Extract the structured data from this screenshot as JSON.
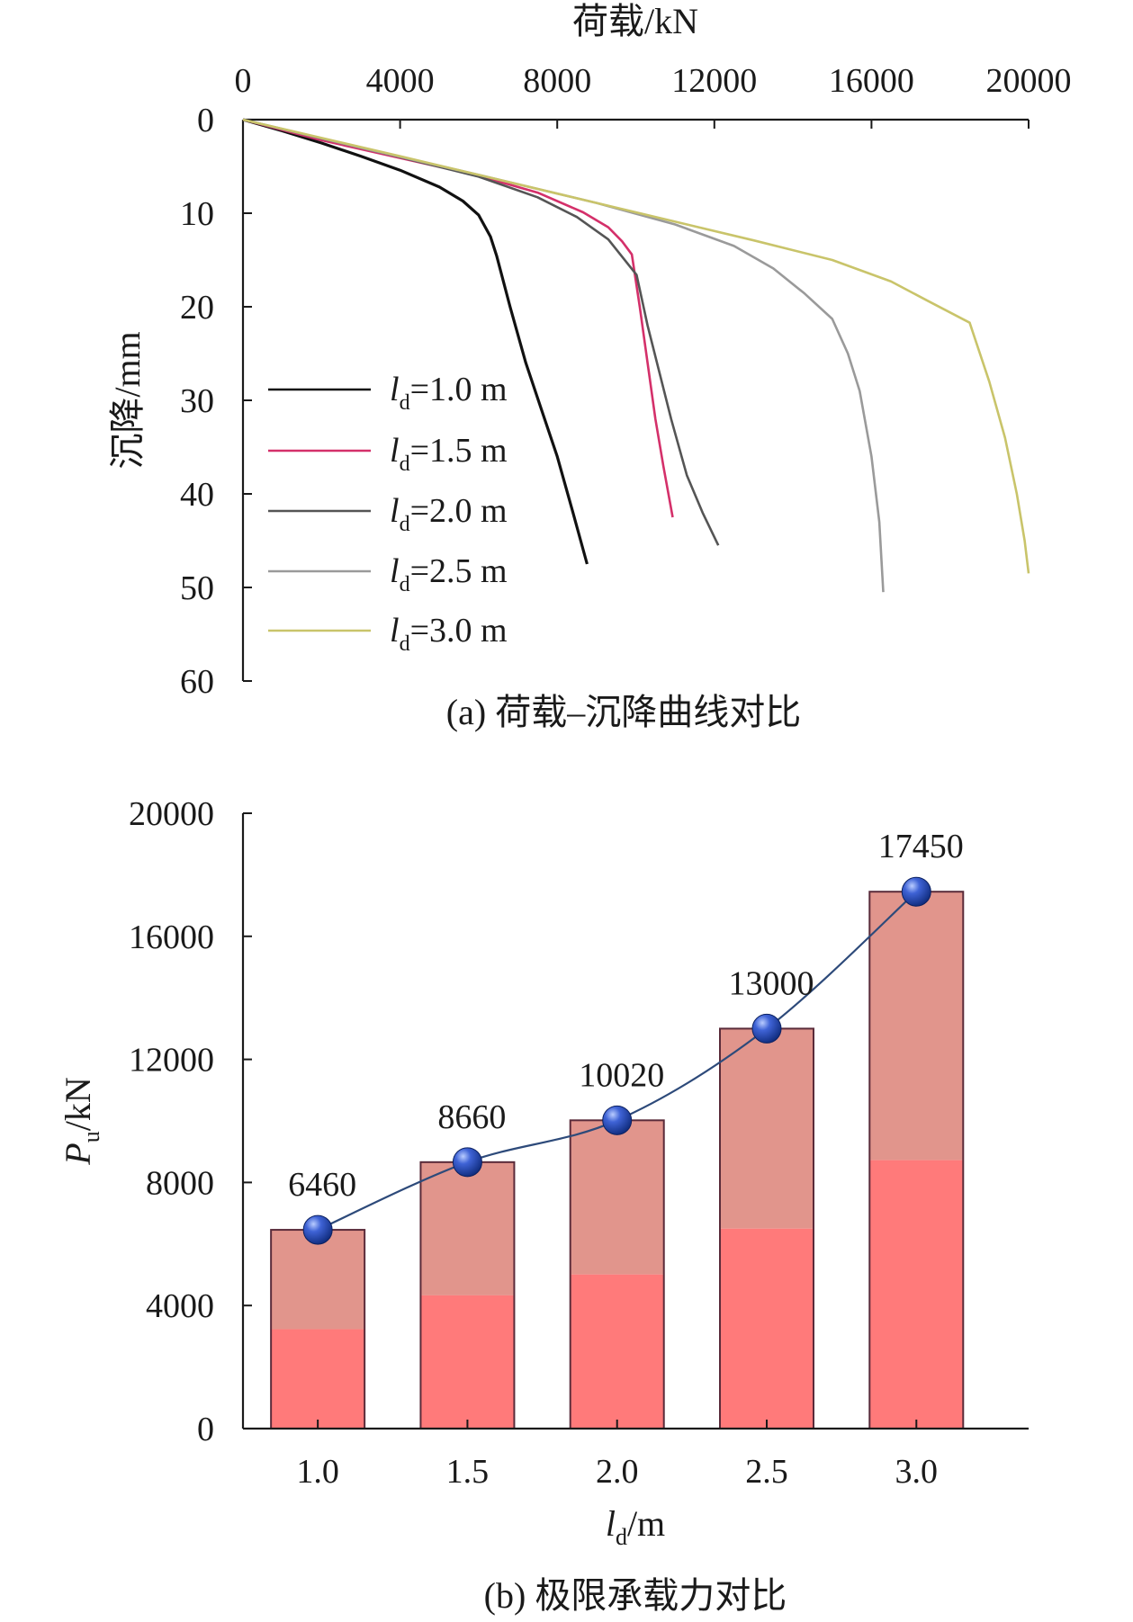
{
  "chart_data": [
    {
      "type": "line",
      "caption": "(a) 荷载–沉降曲线对比",
      "xlabel": "荷载/kN",
      "ylabel": "沉降/mm",
      "xlim": [
        0,
        20000
      ],
      "ylim": [
        0,
        60
      ],
      "x_axis_position": "top",
      "y_inverted": true,
      "xticks": [
        0,
        4000,
        8000,
        12000,
        16000,
        20000
      ],
      "yticks": [
        0,
        10,
        20,
        30,
        40,
        50,
        60
      ],
      "legend_position": "left",
      "series": [
        {
          "name": "ld=1.0 m",
          "legend_var": "l",
          "legend_sub": "d",
          "legend_value": "=1.0 m",
          "color": "#111111",
          "x": [
            0,
            1000,
            2000,
            3000,
            4000,
            5000,
            5600,
            6000,
            6300,
            6460,
            6800,
            7200,
            7600,
            8000,
            8400,
            8760
          ],
          "y": [
            0,
            1.2,
            2.5,
            3.9,
            5.4,
            7.2,
            8.7,
            10.2,
            12.5,
            14.6,
            20,
            26,
            31,
            36,
            42,
            47.5
          ]
        },
        {
          "name": "ld=1.5 m",
          "legend_var": "l",
          "legend_sub": "d",
          "legend_value": "=1.5 m",
          "color": "#d4306a",
          "x": [
            0,
            2000,
            4000,
            6000,
            7500,
            8660,
            9300,
            9650,
            9900,
            10100,
            10300,
            10500,
            10700,
            10940
          ],
          "y": [
            0,
            2.2,
            4.1,
            6.0,
            7.8,
            9.9,
            11.5,
            13.0,
            14.4,
            20,
            26,
            32,
            37,
            42.5
          ]
        },
        {
          "name": "ld=2.0 m",
          "legend_var": "l",
          "legend_sub": "d",
          "legend_value": "=2.0 m",
          "color": "#555555",
          "x": [
            0,
            2000,
            4000,
            6000,
            7500,
            8500,
            9300,
            10020,
            10300,
            10600,
            10900,
            11300,
            11700,
            12100
          ],
          "y": [
            0,
            2.0,
            4.0,
            6.1,
            8.3,
            10.4,
            12.8,
            16.6,
            22,
            27,
            32,
            38,
            42,
            45.5
          ]
        },
        {
          "name": "ld=2.5 m",
          "legend_var": "l",
          "legend_sub": "d",
          "legend_value": "=2.5 m",
          "color": "#9a9a9a",
          "x": [
            0,
            3000,
            6000,
            9000,
            11000,
            12500,
            13500,
            14300,
            15000,
            15400,
            15700,
            16000,
            16200,
            16300
          ],
          "y": [
            0,
            3.0,
            5.9,
            8.9,
            11.2,
            13.5,
            15.9,
            18.6,
            21.3,
            25,
            29,
            36,
            43,
            50.5
          ]
        },
        {
          "name": "ld=3.0 m",
          "legend_var": "l",
          "legend_sub": "d",
          "legend_value": "=3.0 m",
          "color": "#c9c46a",
          "x": [
            0,
            4000,
            8000,
            11000,
            13000,
            15000,
            16500,
            17450,
            18500,
            19000,
            19400,
            19700,
            19900,
            20000
          ],
          "y": [
            0,
            3.9,
            7.9,
            10.9,
            12.9,
            15.0,
            17.3,
            19.4,
            21.7,
            28,
            34,
            40,
            45,
            48.5
          ]
        }
      ]
    },
    {
      "type": "bar",
      "caption": "(b) 极限承载力对比",
      "xlabel_var": "l",
      "xlabel_sub": "d",
      "xlabel_unit": "/m",
      "ylabel_var": "P",
      "ylabel_sub": "u",
      "ylabel_unit": "/kN",
      "ylim": [
        0,
        20000
      ],
      "yticks": [
        0,
        4000,
        8000,
        12000,
        16000,
        20000
      ],
      "categories": [
        "1.0",
        "1.5",
        "2.0",
        "2.5",
        "3.0"
      ],
      "values": [
        6460,
        8660,
        10020,
        13000,
        17450
      ],
      "data_labels": [
        "6460",
        "8660",
        "10020",
        "13000",
        "17450"
      ],
      "bar_color_top": "#e1958c",
      "bar_color_bottom": "#ff7a7a",
      "bar_edge_color": "#5a2b3a",
      "line_color": "#2d4a7a",
      "marker_color": "#1f3f9a",
      "grid": false
    }
  ]
}
